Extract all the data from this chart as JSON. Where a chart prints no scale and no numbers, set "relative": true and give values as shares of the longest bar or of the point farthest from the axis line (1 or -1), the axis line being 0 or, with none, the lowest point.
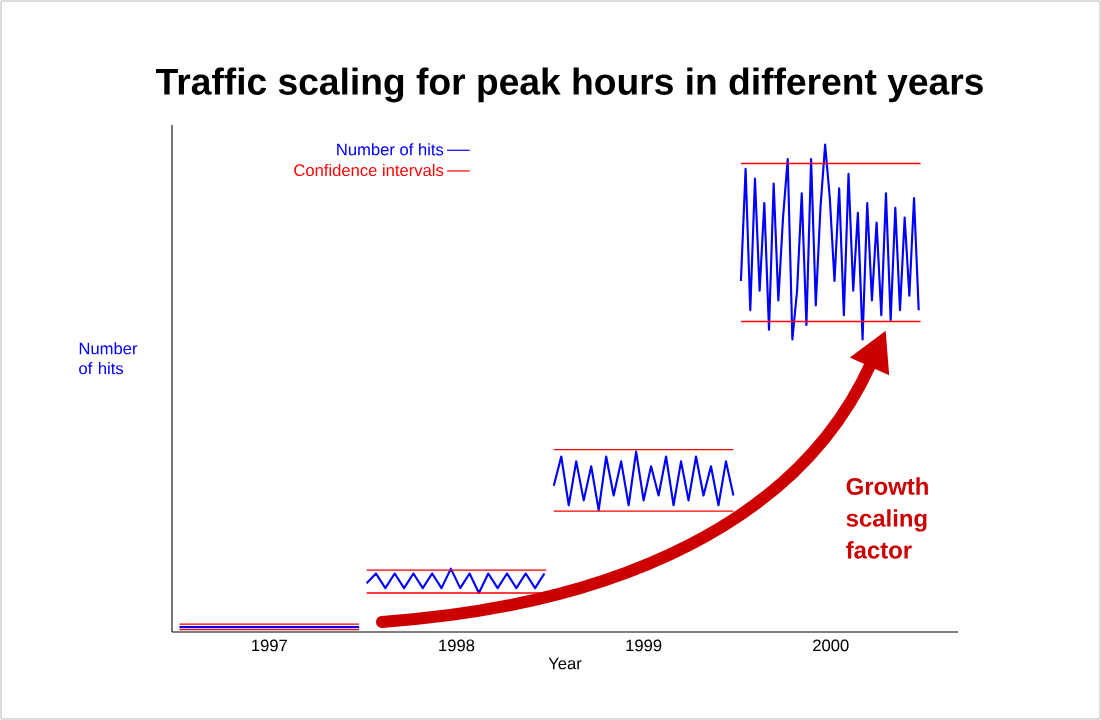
{
  "chart_data": {
    "type": "line",
    "title": "Traffic scaling for peak hours in different years",
    "xlabel": "Year",
    "ylabel": "Number of hits",
    "relative": true,
    "xlim": [
      1996.48,
      2000.68
    ],
    "xticks": [
      1997,
      1998,
      1999,
      2000
    ],
    "legend": "top left",
    "annotations": [
      "Growth scaling factor"
    ],
    "series": [
      {
        "name": "Number of hits",
        "color": "#0000ff",
        "x": [
          1996.52,
          1997.0,
          1997.48,
          1997.49,
          1997.52,
          1997.57,
          1997.62,
          1997.67,
          1997.72,
          1997.77,
          1997.82,
          1997.87,
          1997.92,
          1997.97,
          1998.02,
          1998.07,
          1998.12,
          1998.17,
          1998.22,
          1998.27,
          1998.32,
          1998.37,
          1998.42,
          1998.47,
          1998.49,
          1998.52,
          1998.56,
          1998.6,
          1998.64,
          1998.68,
          1998.72,
          1998.76,
          1998.8,
          1998.84,
          1998.88,
          1998.92,
          1998.96,
          1999.0,
          1999.04,
          1999.08,
          1999.12,
          1999.16,
          1999.2,
          1999.24,
          1999.28,
          1999.32,
          1999.36,
          1999.4,
          1999.44,
          1999.48,
          1999.49,
          1999.52,
          1999.545,
          1999.57,
          1999.595,
          1999.62,
          1999.645,
          1999.67,
          1999.695,
          1999.72,
          1999.745,
          1999.77,
          1999.795,
          1999.82,
          1999.845,
          1999.87,
          1999.895,
          1999.92,
          1999.945,
          1999.97,
          1999.995,
          2000.02,
          2000.045,
          2000.07,
          2000.095,
          2000.12,
          2000.145,
          2000.17,
          2000.195,
          2000.22,
          2000.245,
          2000.27,
          2000.295,
          2000.32,
          2000.345,
          2000.37,
          2000.395,
          2000.42,
          2000.445,
          2000.47
        ],
        "values": [
          0.01,
          0.01,
          0.01,
          null,
          0.1,
          0.12,
          0.09,
          0.12,
          0.09,
          0.12,
          0.09,
          0.12,
          0.09,
          0.13,
          0.09,
          0.12,
          0.08,
          0.12,
          0.09,
          0.12,
          0.09,
          0.12,
          0.09,
          0.12,
          null,
          0.3,
          0.36,
          0.26,
          0.35,
          0.27,
          0.34,
          0.25,
          0.36,
          0.28,
          0.35,
          0.26,
          0.37,
          0.27,
          0.34,
          0.28,
          0.36,
          0.26,
          0.35,
          0.27,
          0.36,
          0.28,
          0.34,
          0.26,
          0.35,
          0.28,
          null,
          0.72,
          0.95,
          0.66,
          0.93,
          0.7,
          0.88,
          0.62,
          0.92,
          0.68,
          0.85,
          0.97,
          0.6,
          0.7,
          0.9,
          0.63,
          0.97,
          0.67,
          0.87,
          1.0,
          0.89,
          0.72,
          0.91,
          0.65,
          0.94,
          0.7,
          0.86,
          0.6,
          0.88,
          0.68,
          0.84,
          0.65,
          0.9,
          0.64,
          0.87,
          0.66,
          0.85,
          0.69,
          0.89,
          0.66
        ]
      },
      {
        "name": "Confidence intervals",
        "color": "#ff0000",
        "x": [
          1996.52,
          1997.48,
          1997.49,
          1997.52,
          1998.48,
          1998.49,
          1998.52,
          1999.48,
          1999.49,
          1999.52,
          2000.48
        ],
        "values": [
          0.016,
          0.016,
          null,
          0.127,
          0.127,
          null,
          0.374,
          0.374,
          null,
          0.961,
          0.961
        ]
      },
      {
        "color": "#ff0000",
        "x": [
          1996.52,
          1997.48,
          1997.49,
          1997.52,
          1998.48,
          1998.49,
          1998.52,
          1999.48,
          1999.49,
          1999.52,
          2000.48
        ],
        "values": [
          0.005,
          0.005,
          null,
          0.08,
          0.08,
          null,
          0.248,
          0.248,
          null,
          0.637,
          0.637
        ]
      }
    ]
  }
}
